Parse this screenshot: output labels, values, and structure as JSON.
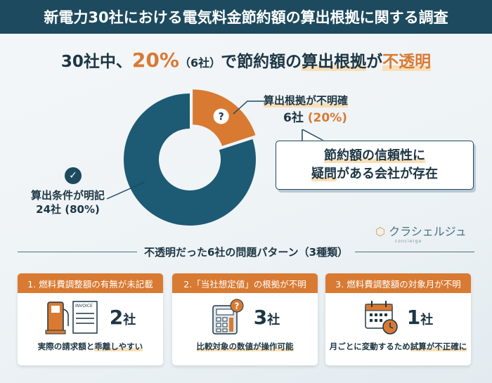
{
  "title": "新電力30社における電気料金節約額の算出根拠に関する調査",
  "headline": {
    "a": "30社中、",
    "pct": "20%",
    "b": "（6社）",
    "c": "で節約額の",
    "d": "算出根拠",
    "e": "が",
    "f": "不透明"
  },
  "chart_data": {
    "type": "pie",
    "style": "donut",
    "total_label": "30社",
    "slices": [
      {
        "label": "算出根拠が不明確",
        "count": 6,
        "percent": 20,
        "color": "#d97a32",
        "icon": "question-icon"
      },
      {
        "label": "算出条件が明記",
        "count": 24,
        "percent": 80,
        "color": "#1d5a74",
        "icon": "check-icon"
      }
    ]
  },
  "labels": {
    "opaque_title": "算出根拠が不明確",
    "opaque_count": "6社",
    "opaque_pct": "(20%)",
    "clear_title": "算出条件が明記",
    "clear_value": "24社 (80%)"
  },
  "bubble": {
    "line1": "節約額の信頼性に",
    "line2a": "疑問",
    "line2b": "がある会社が存在"
  },
  "logo": {
    "name": "クラシェルジュ",
    "sub": "concierge"
  },
  "section_title": "不透明だった6社の問題パターン（3種類）",
  "cards": [
    {
      "header": "1. 燃料費調整額の有無が未記載",
      "count": "2",
      "unit": "社",
      "icon": "fuel-pump-invoice-icon",
      "invoice": "INVOICE",
      "foot_a": "実際の請求額と",
      "foot_b": "乖離しやすい"
    },
    {
      "header": "2.「当社想定値」の根拠が不明",
      "count": "3",
      "unit": "社",
      "icon": "calculator-question-icon",
      "foot_a": "",
      "foot_b": "比較対象の数値が操作可能"
    },
    {
      "header": "3. 燃料費調整額の対象月が不明",
      "count": "1",
      "unit": "社",
      "icon": "calendar-clock-icon",
      "foot_a": "月ごとに変動するため",
      "foot_b": "試算が不正確に"
    }
  ],
  "colors": {
    "navy": "#1d4a5e",
    "orange": "#d97a32",
    "highlight": "#f9dfb8"
  }
}
